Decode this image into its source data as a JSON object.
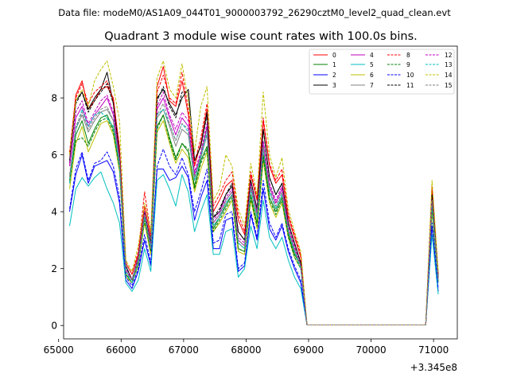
{
  "chart_data": {
    "type": "line",
    "suptitle": "Data file: modeM0/AS1A09_044T01_9000003792_26290cztM0_level2_quad_clean.evt",
    "title": "Quadrant 3 module wise count rates with 100.0s bins.",
    "xlabel": "",
    "ylabel": "",
    "offset_text": "+3.345e8",
    "xlim": [
      65080,
      71380
    ],
    "ylim": [
      -0.47,
      9.82
    ],
    "xticks": [
      65000,
      66000,
      67000,
      68000,
      69000,
      70000,
      71000
    ],
    "xtick_labels": [
      "65000",
      "66000",
      "67000",
      "68000",
      "69000",
      "70000",
      "71000"
    ],
    "yticks": [
      0,
      2,
      4,
      6,
      8
    ],
    "ytick_labels": [
      "0",
      "2",
      "4",
      "6",
      "8"
    ],
    "legend_position": "top-right",
    "x": [
      65175,
      65275,
      65375,
      65475,
      65575,
      65675,
      65775,
      65875,
      65975,
      66075,
      66175,
      66275,
      66375,
      66475,
      66575,
      66675,
      66775,
      66875,
      66975,
      67075,
      67175,
      67275,
      67375,
      67475,
      67575,
      67675,
      67775,
      67875,
      67975,
      68075,
      68175,
      68275,
      68375,
      68475,
      68575,
      68675,
      68775,
      68875,
      68975,
      69075,
      69175,
      69275,
      69375,
      69475,
      69575,
      69675,
      69775,
      69875,
      69975,
      70075,
      70175,
      70275,
      70375,
      70475,
      70575,
      70675,
      70775,
      70875,
      70975,
      71075
    ],
    "gap_start_index": 39,
    "gap_end_index": 57,
    "series": [
      {
        "name": "0",
        "color": "#ff0000",
        "dash": "solid",
        "values": [
          6.0,
          8.1,
          8.6,
          7.6,
          7.9,
          8.3,
          8.4,
          8.0,
          6.2,
          2.2,
          1.8,
          2.5,
          4.2,
          3.1,
          8.4,
          9.1,
          7.9,
          7.7,
          8.6,
          7.4,
          5.6,
          6.4,
          7.6,
          4.0,
          4.4,
          4.9,
          5.1,
          3.7,
          3.2,
          5.3,
          4.4,
          7.2,
          5.6,
          5.0,
          5.3,
          3.8,
          3.1,
          2.4,
          0.02,
          0.02,
          0.02,
          0.02,
          0.02,
          0.02,
          0.02,
          0.02,
          0.02,
          0.02,
          0.02,
          0.02,
          0.02,
          0.02,
          0.02,
          0.02,
          0.02,
          0.02,
          0.02,
          0.02,
          4.8,
          1.8
        ]
      },
      {
        "name": "1",
        "color": "#008000",
        "dash": "solid",
        "values": [
          5.0,
          6.7,
          7.2,
          6.4,
          6.9,
          7.3,
          7.4,
          6.9,
          5.6,
          1.8,
          1.5,
          2.2,
          3.8,
          2.6,
          7.0,
          7.4,
          6.6,
          5.9,
          6.4,
          6.1,
          4.9,
          5.8,
          6.3,
          3.4,
          3.8,
          4.2,
          4.6,
          2.7,
          2.6,
          4.6,
          3.6,
          6.0,
          4.5,
          4.0,
          4.5,
          3.2,
          2.5,
          2.1,
          0.02,
          0.02,
          0.02,
          0.02,
          0.02,
          0.02,
          0.02,
          0.02,
          0.02,
          0.02,
          0.02,
          0.02,
          0.02,
          0.02,
          0.02,
          0.02,
          0.02,
          0.02,
          0.02,
          0.02,
          4.2,
          1.6
        ]
      },
      {
        "name": "2",
        "color": "#0000ff",
        "dash": "solid",
        "values": [
          4.0,
          5.3,
          6.0,
          5.0,
          5.6,
          5.7,
          5.8,
          5.4,
          4.3,
          1.6,
          1.3,
          1.9,
          3.0,
          2.1,
          5.5,
          5.5,
          5.1,
          5.2,
          5.6,
          5.2,
          3.7,
          4.5,
          5.1,
          2.7,
          2.7,
          3.7,
          3.8,
          1.9,
          2.1,
          3.9,
          3.0,
          4.8,
          3.4,
          3.0,
          3.5,
          2.6,
          2.0,
          1.5,
          0.02,
          0.02,
          0.02,
          0.02,
          0.02,
          0.02,
          0.02,
          0.02,
          0.02,
          0.02,
          0.02,
          0.02,
          0.02,
          0.02,
          0.02,
          0.02,
          0.02,
          0.02,
          0.02,
          0.02,
          3.5,
          1.2
        ]
      },
      {
        "name": "3",
        "color": "#000000",
        "dash": "solid",
        "values": [
          5.8,
          7.9,
          8.2,
          7.6,
          8.0,
          8.3,
          8.9,
          7.8,
          6.0,
          2.1,
          1.6,
          2.4,
          4.0,
          2.9,
          8.0,
          8.3,
          7.8,
          7.4,
          8.0,
          8.3,
          5.8,
          6.3,
          7.5,
          3.8,
          4.0,
          4.6,
          4.9,
          3.3,
          3.0,
          5.1,
          4.1,
          6.9,
          5.2,
          4.6,
          5.0,
          3.6,
          2.9,
          2.2,
          0.02,
          0.02,
          0.02,
          0.02,
          0.02,
          0.02,
          0.02,
          0.02,
          0.02,
          0.02,
          0.02,
          0.02,
          0.02,
          0.02,
          0.02,
          0.02,
          0.02,
          0.02,
          0.02,
          0.02,
          4.6,
          1.7
        ]
      },
      {
        "name": "4",
        "color": "#bf00bf",
        "dash": "solid",
        "values": [
          5.6,
          7.3,
          7.7,
          7.0,
          7.4,
          7.7,
          8.0,
          7.4,
          5.8,
          1.9,
          1.6,
          2.3,
          3.9,
          2.8,
          7.6,
          8.0,
          7.3,
          6.7,
          7.3,
          7.0,
          5.3,
          6.0,
          7.0,
          3.6,
          3.9,
          4.4,
          4.7,
          3.0,
          2.8,
          4.9,
          3.9,
          6.4,
          4.9,
          4.3,
          4.8,
          3.4,
          2.7,
          2.1,
          0.02,
          0.02,
          0.02,
          0.02,
          0.02,
          0.02,
          0.02,
          0.02,
          0.02,
          0.02,
          0.02,
          0.02,
          0.02,
          0.02,
          0.02,
          0.02,
          0.02,
          0.02,
          0.02,
          0.02,
          4.4,
          1.6
        ]
      },
      {
        "name": "5",
        "color": "#00bfbf",
        "dash": "solid",
        "values": [
          3.5,
          4.8,
          5.2,
          4.9,
          5.2,
          5.4,
          4.8,
          4.3,
          3.6,
          1.5,
          1.2,
          1.6,
          2.7,
          1.9,
          5.1,
          5.3,
          4.8,
          4.2,
          5.3,
          4.7,
          3.3,
          4.0,
          4.6,
          2.5,
          2.5,
          3.3,
          3.4,
          1.7,
          2.0,
          3.5,
          2.7,
          4.4,
          3.1,
          2.7,
          3.1,
          2.3,
          1.7,
          1.3,
          0.02,
          0.02,
          0.02,
          0.02,
          0.02,
          0.02,
          0.02,
          0.02,
          0.02,
          0.02,
          0.02,
          0.02,
          0.02,
          0.02,
          0.02,
          0.02,
          0.02,
          0.02,
          0.02,
          0.02,
          3.2,
          1.1
        ]
      },
      {
        "name": "6",
        "color": "#bfbf00",
        "dash": "solid",
        "values": [
          4.8,
          6.4,
          7.0,
          6.1,
          6.6,
          7.1,
          7.2,
          6.7,
          5.4,
          1.7,
          1.5,
          2.1,
          3.6,
          2.5,
          6.8,
          7.2,
          6.4,
          5.7,
          6.2,
          5.9,
          4.7,
          5.5,
          6.1,
          3.3,
          3.6,
          4.0,
          4.4,
          2.6,
          2.5,
          4.4,
          3.4,
          5.8,
          4.3,
          3.8,
          4.3,
          3.1,
          2.4,
          2.0,
          0.02,
          0.02,
          0.02,
          0.02,
          0.02,
          0.02,
          0.02,
          0.02,
          0.02,
          0.02,
          0.02,
          0.02,
          0.02,
          0.02,
          0.02,
          0.02,
          0.02,
          0.02,
          0.02,
          0.02,
          4.0,
          1.5
        ]
      },
      {
        "name": "7",
        "color": "#808080",
        "dash": "solid",
        "values": [
          5.2,
          6.9,
          7.4,
          6.8,
          7.2,
          7.5,
          7.6,
          7.2,
          5.7,
          1.9,
          1.6,
          2.3,
          3.9,
          2.7,
          7.3,
          7.6,
          7.0,
          6.3,
          6.9,
          6.7,
          5.1,
          5.9,
          6.7,
          3.5,
          3.8,
          4.3,
          4.6,
          2.9,
          2.7,
          4.8,
          3.8,
          6.2,
          4.7,
          4.1,
          4.6,
          3.3,
          2.6,
          2.1,
          0.02,
          0.02,
          0.02,
          0.02,
          0.02,
          0.02,
          0.02,
          0.02,
          0.02,
          0.02,
          0.02,
          0.02,
          0.02,
          0.02,
          0.02,
          0.02,
          0.02,
          0.02,
          0.02,
          0.02,
          4.3,
          1.6
        ]
      },
      {
        "name": "8",
        "color": "#ff0000",
        "dash": "dashed",
        "values": [
          6.1,
          8.0,
          8.5,
          7.8,
          8.2,
          8.4,
          8.6,
          7.9,
          6.3,
          2.2,
          1.8,
          2.6,
          4.7,
          3.2,
          8.2,
          8.8,
          8.0,
          7.8,
          8.9,
          7.6,
          5.7,
          6.6,
          7.8,
          4.2,
          4.6,
          5.1,
          5.4,
          3.9,
          3.3,
          5.4,
          4.5,
          7.3,
          5.7,
          5.1,
          5.5,
          3.9,
          3.2,
          2.5,
          0.02,
          0.02,
          0.02,
          0.02,
          0.02,
          0.02,
          0.02,
          0.02,
          0.02,
          0.02,
          0.02,
          0.02,
          0.02,
          0.02,
          0.02,
          0.02,
          0.02,
          0.02,
          0.02,
          0.02,
          4.9,
          1.8
        ]
      },
      {
        "name": "9",
        "color": "#008000",
        "dash": "dashed",
        "values": [
          5.1,
          6.5,
          6.6,
          6.3,
          6.8,
          7.2,
          7.3,
          6.8,
          5.5,
          1.8,
          1.5,
          2.2,
          3.7,
          2.6,
          6.9,
          7.4,
          6.5,
          5.8,
          6.4,
          6.2,
          4.8,
          5.7,
          6.2,
          3.3,
          3.7,
          4.1,
          4.5,
          2.7,
          2.6,
          4.5,
          3.5,
          5.9,
          4.4,
          3.9,
          4.4,
          3.1,
          2.4,
          2.0,
          0.02,
          0.02,
          0.02,
          0.02,
          0.02,
          0.02,
          0.02,
          0.02,
          0.02,
          0.02,
          0.02,
          0.02,
          0.02,
          0.02,
          0.02,
          0.02,
          0.02,
          0.02,
          0.02,
          0.02,
          4.1,
          1.5
        ]
      },
      {
        "name": "10",
        "color": "#0000ff",
        "dash": "dashed",
        "values": [
          4.1,
          5.5,
          6.1,
          5.1,
          5.7,
          5.8,
          6.1,
          5.6,
          4.5,
          1.7,
          1.4,
          2.0,
          3.2,
          2.2,
          5.6,
          6.2,
          5.6,
          5.3,
          5.9,
          5.3,
          4.0,
          4.7,
          5.5,
          2.9,
          3.0,
          3.9,
          4.0,
          2.0,
          2.2,
          4.0,
          3.1,
          5.1,
          3.6,
          3.1,
          3.6,
          2.7,
          2.1,
          1.6,
          0.02,
          0.02,
          0.02,
          0.02,
          0.02,
          0.02,
          0.02,
          0.02,
          0.02,
          0.02,
          0.02,
          0.02,
          0.02,
          0.02,
          0.02,
          0.02,
          0.02,
          0.02,
          0.02,
          0.02,
          3.6,
          1.3
        ]
      },
      {
        "name": "11",
        "color": "#000000",
        "dash": "dashed",
        "values": [
          5.7,
          7.8,
          8.2,
          7.5,
          7.9,
          8.2,
          8.5,
          7.8,
          6.0,
          2.1,
          1.6,
          2.4,
          4.0,
          2.9,
          7.9,
          8.4,
          7.7,
          7.3,
          8.2,
          8.2,
          5.8,
          6.3,
          7.4,
          3.8,
          4.1,
          4.6,
          5.0,
          3.3,
          3.0,
          5.1,
          4.1,
          6.9,
          5.2,
          4.6,
          5.0,
          3.6,
          2.9,
          2.2,
          0.02,
          0.02,
          0.02,
          0.02,
          0.02,
          0.02,
          0.02,
          0.02,
          0.02,
          0.02,
          0.02,
          0.02,
          0.02,
          0.02,
          0.02,
          0.02,
          0.02,
          0.02,
          0.02,
          0.02,
          4.6,
          1.7
        ]
      },
      {
        "name": "12",
        "color": "#bf00bf",
        "dash": "dashed",
        "values": [
          5.7,
          7.5,
          7.9,
          7.1,
          7.5,
          7.9,
          8.1,
          7.5,
          5.9,
          2.0,
          1.6,
          2.4,
          4.0,
          2.8,
          7.7,
          8.2,
          7.4,
          6.9,
          7.5,
          7.2,
          5.4,
          6.1,
          7.1,
          3.7,
          4.0,
          4.5,
          4.8,
          3.1,
          2.9,
          5.0,
          4.0,
          6.5,
          5.0,
          4.4,
          4.9,
          3.5,
          2.8,
          2.1,
          0.02,
          0.02,
          0.02,
          0.02,
          0.02,
          0.02,
          0.02,
          0.02,
          0.02,
          0.02,
          0.02,
          0.02,
          0.02,
          0.02,
          0.02,
          0.02,
          0.02,
          0.02,
          0.02,
          0.02,
          4.4,
          1.6
        ]
      },
      {
        "name": "13",
        "color": "#00bfbf",
        "dash": "dashed",
        "values": [
          5.0,
          6.9,
          7.6,
          7.0,
          7.4,
          7.5,
          7.3,
          7.0,
          5.6,
          1.9,
          1.5,
          2.2,
          3.8,
          2.7,
          7.4,
          7.6,
          7.1,
          6.5,
          7.1,
          6.8,
          5.1,
          5.9,
          6.8,
          3.5,
          3.8,
          4.3,
          4.6,
          2.9,
          2.7,
          4.8,
          3.8,
          6.2,
          4.7,
          4.1,
          4.6,
          3.3,
          2.6,
          2.0,
          0.02,
          0.02,
          0.02,
          0.02,
          0.02,
          0.02,
          0.02,
          0.02,
          0.02,
          0.02,
          0.02,
          0.02,
          0.02,
          0.02,
          0.02,
          0.02,
          0.02,
          0.02,
          0.02,
          0.02,
          4.3,
          1.5
        ]
      },
      {
        "name": "14",
        "color": "#bfbf00",
        "dash": "dashed",
        "values": [
          6.0,
          7.9,
          8.3,
          7.7,
          8.6,
          9.0,
          9.3,
          8.4,
          7.2,
          2.3,
          1.9,
          2.8,
          4.3,
          3.3,
          8.7,
          9.3,
          8.3,
          8.0,
          9.2,
          7.9,
          6.1,
          7.7,
          8.4,
          4.4,
          4.8,
          6.0,
          5.6,
          4.1,
          3.5,
          5.7,
          4.6,
          8.2,
          6.0,
          5.2,
          5.9,
          4.1,
          3.3,
          2.6,
          0.02,
          0.02,
          0.02,
          0.02,
          0.02,
          0.02,
          0.02,
          0.02,
          0.02,
          0.02,
          0.02,
          0.02,
          0.02,
          0.02,
          0.02,
          0.02,
          0.02,
          0.02,
          0.02,
          0.02,
          5.1,
          1.9
        ]
      },
      {
        "name": "15",
        "color": "#808080",
        "dash": "dashed",
        "values": [
          5.3,
          7.0,
          7.5,
          6.9,
          7.3,
          7.6,
          7.7,
          7.2,
          5.8,
          1.9,
          1.6,
          2.3,
          3.9,
          2.7,
          7.4,
          7.8,
          7.1,
          6.5,
          7.1,
          6.9,
          5.2,
          6.0,
          6.9,
          3.6,
          3.9,
          4.4,
          4.7,
          3.0,
          2.8,
          4.9,
          3.9,
          6.3,
          4.8,
          4.2,
          4.7,
          3.4,
          2.7,
          2.1,
          0.02,
          0.02,
          0.02,
          0.02,
          0.02,
          0.02,
          0.02,
          0.02,
          0.02,
          0.02,
          0.02,
          0.02,
          0.02,
          0.02,
          0.02,
          0.02,
          0.02,
          0.02,
          0.02,
          0.02,
          4.4,
          1.6
        ]
      }
    ]
  }
}
